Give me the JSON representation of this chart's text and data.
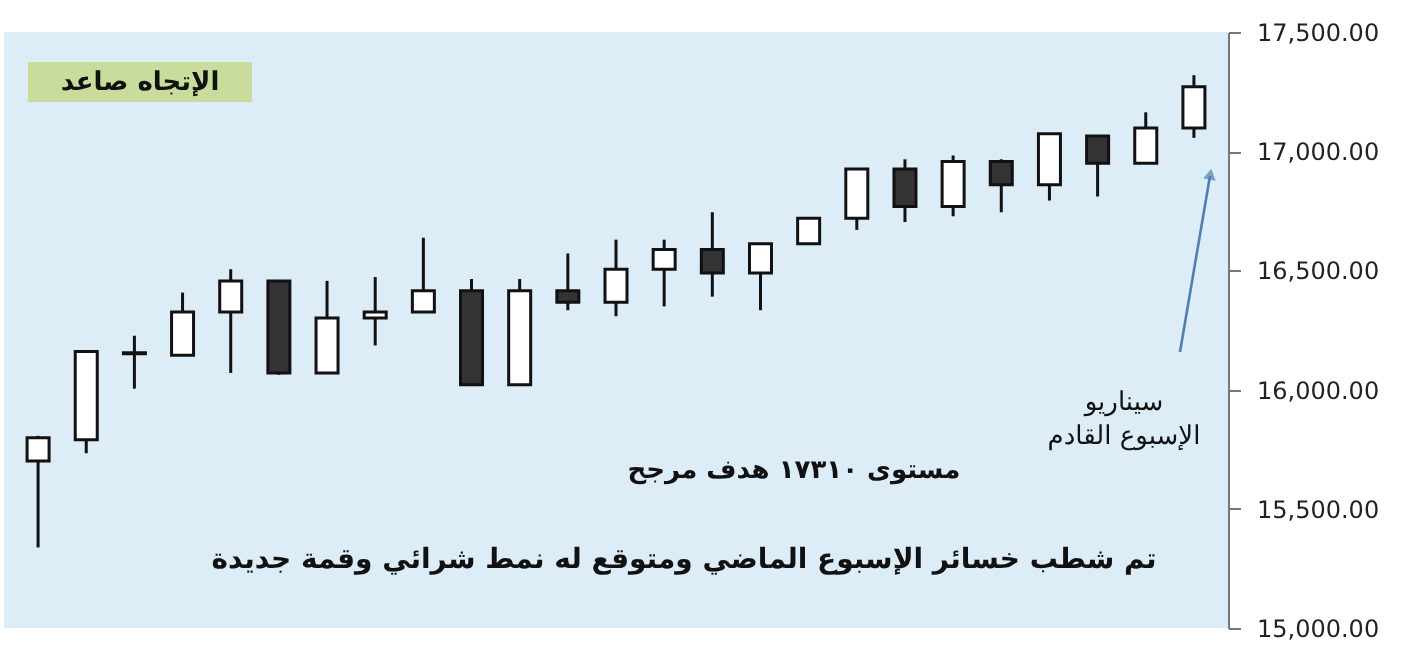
{
  "chart_data": {
    "type": "candlestick",
    "categories": [
      null,
      null,
      null,
      null,
      null,
      null,
      null,
      null,
      null,
      null,
      null,
      null,
      null,
      null,
      null,
      null,
      null,
      null,
      null,
      null,
      null,
      null,
      null,
      null,
      null
    ],
    "ohlc": [
      [
        15700,
        15806,
        15338,
        15798
      ],
      [
        15790,
        16160,
        15733,
        16160
      ],
      [
        16150,
        16226,
        16004,
        16155
      ],
      [
        16144,
        16407,
        16144,
        16325
      ],
      [
        16325,
        16505,
        16070,
        16456
      ],
      [
        16456,
        16460,
        16062,
        16070
      ],
      [
        16070,
        16456,
        16070,
        16300
      ],
      [
        16300,
        16472,
        16185,
        16325
      ],
      [
        16325,
        16637,
        16325,
        16415
      ],
      [
        16415,
        16464,
        16020,
        16020
      ],
      [
        16020,
        16464,
        16020,
        16415
      ],
      [
        16415,
        16571,
        16333,
        16366
      ],
      [
        16366,
        16629,
        16308,
        16505
      ],
      [
        16505,
        16629,
        16349,
        16588
      ],
      [
        16588,
        16744,
        16390,
        16489
      ],
      [
        16489,
        16612,
        16333,
        16612
      ],
      [
        16612,
        16719,
        16612,
        16719
      ],
      [
        16719,
        16925,
        16670,
        16925
      ],
      [
        16925,
        16966,
        16703,
        16768
      ],
      [
        16768,
        16982,
        16727,
        16957
      ],
      [
        16957,
        16966,
        16744,
        16859
      ],
      [
        16859,
        17073,
        16793,
        17073
      ],
      [
        17064,
        17064,
        16810,
        16949
      ],
      [
        16949,
        17163,
        16949,
        17097
      ],
      [
        17097,
        17319,
        17056,
        17270
      ]
    ],
    "colors": [
      "#ffffff",
      "#ffffff",
      "#ffffff",
      "#ffffff",
      "#ffffff",
      "#333333",
      "#ffffff",
      "#ffffff",
      "#ffffff",
      "#333333",
      "#ffffff",
      "#333333",
      "#ffffff",
      "#ffffff",
      "#333333",
      "#ffffff",
      "#ffffff",
      "#ffffff",
      "#333333",
      "#ffffff",
      "#333333",
      "#ffffff",
      "#333333",
      "#ffffff",
      "#ffffff"
    ],
    "ylim": [
      15000,
      17500
    ],
    "yticks": [
      {
        "value": 15000,
        "label": "15,000.00"
      },
      {
        "value": 15500,
        "label": "15,500.00"
      },
      {
        "value": 16000,
        "label": "16,000.00"
      },
      {
        "value": 16500,
        "label": "16,500.00"
      },
      {
        "value": 17000,
        "label": "17,000.00"
      },
      {
        "value": 17500,
        "label": "17,500.00"
      }
    ],
    "tick_labels": "y",
    "grid": false,
    "annotations": [
      "الإتجاه صاعد",
      "مستوى ١٧٣١٠ هدف مرجح",
      "تم شطب خسائر الإسبوع الماضي ومتوقع له نمط شرائي وقمة جديدة",
      "سيناريو\nالإسبوع القادم"
    ]
  }
}
